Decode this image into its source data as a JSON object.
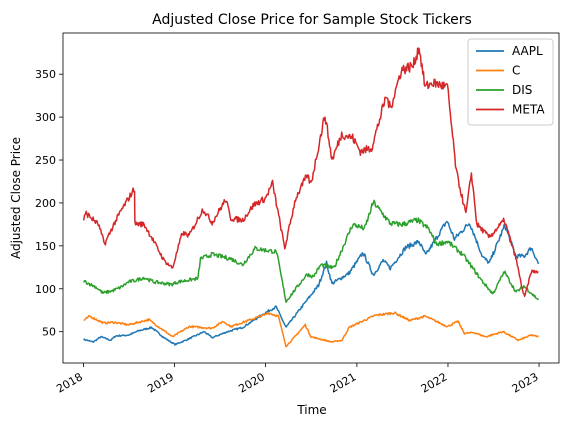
{
  "chart_data": {
    "type": "line",
    "title": "Adjusted Close Price for Sample Stock Tickers",
    "xlabel": "Time",
    "ylabel": "Adjusted Close Price",
    "xlim": [
      "2017-10-11",
      "2023-03-22"
    ],
    "ylim": [
      13.5,
      398
    ],
    "x_ticks": [
      "2018",
      "2019",
      "2020",
      "2021",
      "2022",
      "2023"
    ],
    "y_ticks": [
      50,
      100,
      150,
      200,
      250,
      300,
      350
    ],
    "grid": false,
    "legend_position": "top-right",
    "series": [
      {
        "name": "AAPL",
        "color": "#1f77b4",
        "points": [
          [
            "2018-01-02",
            41
          ],
          [
            "2018-02-09",
            38
          ],
          [
            "2018-03-12",
            44
          ],
          [
            "2018-04-20",
            40
          ],
          [
            "2018-05-10",
            45
          ],
          [
            "2018-07-01",
            46
          ],
          [
            "2018-08-10",
            51
          ],
          [
            "2018-10-01",
            55
          ],
          [
            "2018-11-20",
            43
          ],
          [
            "2019-01-03",
            35
          ],
          [
            "2019-02-15",
            40
          ],
          [
            "2019-04-30",
            50
          ],
          [
            "2019-06-01",
            43
          ],
          [
            "2019-08-01",
            50
          ],
          [
            "2019-10-01",
            55
          ],
          [
            "2019-12-31",
            72
          ],
          [
            "2020-02-12",
            79
          ],
          [
            "2020-03-23",
            55
          ],
          [
            "2020-05-15",
            75
          ],
          [
            "2020-07-31",
            104
          ],
          [
            "2020-09-01",
            130
          ],
          [
            "2020-09-23",
            106
          ],
          [
            "2020-11-30",
            118
          ],
          [
            "2021-01-26",
            142
          ],
          [
            "2021-03-08",
            116
          ],
          [
            "2021-04-16",
            133
          ],
          [
            "2021-05-15",
            124
          ],
          [
            "2021-07-15",
            148
          ],
          [
            "2021-09-07",
            155
          ],
          [
            "2021-10-04",
            139
          ],
          [
            "2021-12-28",
            179
          ],
          [
            "2022-01-27",
            158
          ],
          [
            "2022-03-29",
            177
          ],
          [
            "2022-05-20",
            137
          ],
          [
            "2022-06-16",
            130
          ],
          [
            "2022-08-17",
            174
          ],
          [
            "2022-09-30",
            138
          ],
          [
            "2022-11-03",
            138
          ],
          [
            "2022-12-01",
            148
          ],
          [
            "2022-12-30",
            129
          ]
        ]
      },
      {
        "name": "C",
        "color": "#ff7f0e",
        "points": [
          [
            "2018-01-02",
            63
          ],
          [
            "2018-01-26",
            68
          ],
          [
            "2018-03-23",
            60
          ],
          [
            "2018-05-01",
            61
          ],
          [
            "2018-07-01",
            58
          ],
          [
            "2018-09-20",
            64
          ],
          [
            "2018-12-24",
            44
          ],
          [
            "2019-03-01",
            56
          ],
          [
            "2019-05-31",
            54
          ],
          [
            "2019-07-15",
            62
          ],
          [
            "2019-08-15",
            56
          ],
          [
            "2019-12-31",
            70
          ],
          [
            "2020-01-10",
            72
          ],
          [
            "2020-02-21",
            68
          ],
          [
            "2020-03-23",
            33
          ],
          [
            "2020-04-15",
            40
          ],
          [
            "2020-06-08",
            58
          ],
          [
            "2020-07-01",
            44
          ],
          [
            "2020-09-23",
            38
          ],
          [
            "2020-11-02",
            40
          ],
          [
            "2020-12-01",
            55
          ],
          [
            "2021-03-15",
            69
          ],
          [
            "2021-06-01",
            72
          ],
          [
            "2021-08-01",
            63
          ],
          [
            "2021-10-01",
            68
          ],
          [
            "2021-12-30",
            56
          ],
          [
            "2022-02-10",
            62
          ],
          [
            "2022-03-08",
            48
          ],
          [
            "2022-04-15",
            49
          ],
          [
            "2022-06-01",
            44
          ],
          [
            "2022-08-10",
            50
          ],
          [
            "2022-10-10",
            40
          ],
          [
            "2022-12-01",
            46
          ],
          [
            "2022-12-30",
            44
          ]
        ]
      },
      {
        "name": "DIS",
        "color": "#2ca02c",
        "points": [
          [
            "2018-01-02",
            109
          ],
          [
            "2018-02-20",
            102
          ],
          [
            "2018-03-20",
            95
          ],
          [
            "2018-05-01",
            98
          ],
          [
            "2018-06-01",
            102
          ],
          [
            "2018-07-01",
            108
          ],
          [
            "2018-08-01",
            110
          ],
          [
            "2018-09-01",
            113
          ],
          [
            "2018-10-10",
            108
          ],
          [
            "2018-12-20",
            105
          ],
          [
            "2019-01-15",
            108
          ],
          [
            "2019-04-05",
            112
          ],
          [
            "2019-04-15",
            135
          ],
          [
            "2019-06-01",
            140
          ],
          [
            "2019-08-15",
            135
          ],
          [
            "2019-10-01",
            128
          ],
          [
            "2019-11-20",
            147
          ],
          [
            "2019-12-31",
            145
          ],
          [
            "2020-02-14",
            143
          ],
          [
            "2020-03-23",
            85
          ],
          [
            "2020-05-01",
            100
          ],
          [
            "2020-06-15",
            117
          ],
          [
            "2020-07-10",
            114
          ],
          [
            "2020-08-10",
            128
          ],
          [
            "2020-10-01",
            124
          ],
          [
            "2020-12-15",
            175
          ],
          [
            "2021-02-01",
            170
          ],
          [
            "2021-03-08",
            201
          ],
          [
            "2021-05-15",
            176
          ],
          [
            "2021-07-01",
            175
          ],
          [
            "2021-09-01",
            180
          ],
          [
            "2021-10-15",
            170
          ],
          [
            "2021-11-15",
            152
          ],
          [
            "2021-12-30",
            155
          ],
          [
            "2022-03-01",
            140
          ],
          [
            "2022-05-15",
            110
          ],
          [
            "2022-06-30",
            94
          ],
          [
            "2022-08-15",
            120
          ],
          [
            "2022-10-01",
            96
          ],
          [
            "2022-11-01",
            103
          ],
          [
            "2022-12-30",
            87
          ]
        ]
      },
      {
        "name": "META",
        "color": "#d62728",
        "points": [
          [
            "2018-01-02",
            181
          ],
          [
            "2018-01-12",
            188
          ],
          [
            "2018-03-02",
            175
          ],
          [
            "2018-03-27",
            152
          ],
          [
            "2018-05-01",
            174
          ],
          [
            "2018-06-01",
            191
          ],
          [
            "2018-07-25",
            217
          ],
          [
            "2018-07-26",
            176
          ],
          [
            "2018-09-01",
            175
          ],
          [
            "2018-10-01",
            160
          ],
          [
            "2018-11-20",
            133
          ],
          [
            "2018-12-24",
            124
          ],
          [
            "2019-02-01",
            165
          ],
          [
            "2019-03-01",
            162
          ],
          [
            "2019-04-25",
            193
          ],
          [
            "2019-06-01",
            177
          ],
          [
            "2019-07-25",
            204
          ],
          [
            "2019-08-15",
            182
          ],
          [
            "2019-10-01",
            180
          ],
          [
            "2019-11-15",
            198
          ],
          [
            "2019-12-31",
            205
          ],
          [
            "2020-01-29",
            223
          ],
          [
            "2020-03-18",
            147
          ],
          [
            "2020-04-30",
            205
          ],
          [
            "2020-06-15",
            232
          ],
          [
            "2020-07-01",
            222
          ],
          [
            "2020-08-26",
            303
          ],
          [
            "2020-09-23",
            250
          ],
          [
            "2020-11-01",
            280
          ],
          [
            "2020-12-15",
            276
          ],
          [
            "2021-01-15",
            260
          ],
          [
            "2021-03-01",
            264
          ],
          [
            "2021-04-29",
            325
          ],
          [
            "2021-05-15",
            310
          ],
          [
            "2021-06-28",
            355
          ],
          [
            "2021-08-15",
            360
          ],
          [
            "2021-09-07",
            382
          ],
          [
            "2021-10-01",
            335
          ],
          [
            "2021-11-01",
            340
          ],
          [
            "2021-12-30",
            335
          ],
          [
            "2022-02-03",
            237
          ],
          [
            "2022-03-14",
            187
          ],
          [
            "2022-04-05",
            235
          ],
          [
            "2022-04-27",
            175
          ],
          [
            "2022-06-16",
            160
          ],
          [
            "2022-08-15",
            180
          ],
          [
            "2022-09-30",
            136
          ],
          [
            "2022-10-27",
            98
          ],
          [
            "2022-11-04",
            90
          ],
          [
            "2022-12-01",
            120
          ],
          [
            "2022-12-30",
            120
          ]
        ]
      }
    ]
  }
}
